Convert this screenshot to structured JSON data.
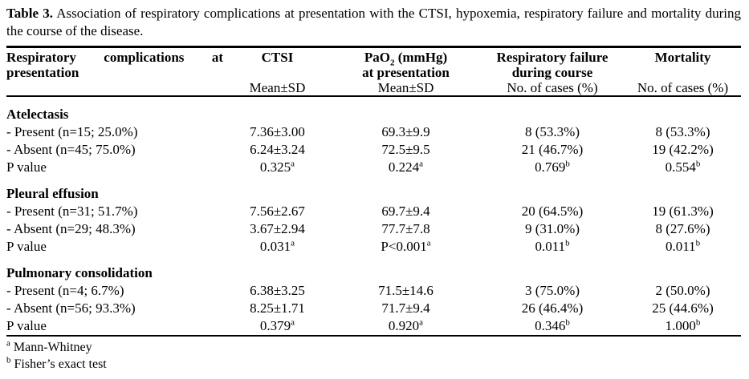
{
  "caption": {
    "label": "Table 3.",
    "text": "Association of respiratory complications at presentation with the CTSI, hypoxemia, respiratory failure and mortality during the course of the disease."
  },
  "header": {
    "col1_line1": "Respiratory complications at",
    "col1_line2": "presentation",
    "col2": {
      "title": "CTSI",
      "sub": "Mean±SD"
    },
    "col3": {
      "title_main": "PaO",
      "title_subscript": "2",
      "title_rest": " (mmHg)",
      "line2": "at presentation",
      "sub": "Mean±SD"
    },
    "col4": {
      "title": "Respiratory failure",
      "line2": "during course",
      "sub": "No. of cases (%)"
    },
    "col5": {
      "title": "Mortality",
      "sub": "No. of cases (%)"
    }
  },
  "sections": [
    {
      "title": "Atelectasis",
      "rows": [
        {
          "label": "- Present (n=15; 25.0%)",
          "cells": [
            "7.36±3.00",
            "69.3±9.9",
            "8 (53.3%)",
            "8 (53.3%)"
          ]
        },
        {
          "label": "- Absent (n=45; 75.0%)",
          "cells": [
            "6.24±3.24",
            "72.5±9.5",
            "21 (46.7%)",
            "19 (42.2%)"
          ]
        },
        {
          "label": "P value",
          "cells": [
            "0.325",
            "0.224",
            "0.769",
            "0.554"
          ],
          "sups": [
            "a",
            "a",
            "b",
            "b"
          ]
        }
      ]
    },
    {
      "title": "Pleural effusion",
      "rows": [
        {
          "label": "- Present (n=31; 51.7%)",
          "cells": [
            "7.56±2.67",
            "69.7±9.4",
            "20 (64.5%)",
            "19 (61.3%)"
          ]
        },
        {
          "label": "- Absent (n=29; 48.3%)",
          "cells": [
            "3.67±2.94",
            "77.7±7.8",
            "9 (31.0%)",
            "8 (27.6%)"
          ]
        },
        {
          "label": "P value",
          "cells": [
            "0.031",
            "P<0.001",
            "0.011",
            "0.011"
          ],
          "sups": [
            "a",
            "a",
            "b",
            "b"
          ]
        }
      ]
    },
    {
      "title": "Pulmonary consolidation",
      "rows": [
        {
          "label": "- Present (n=4; 6.7%)",
          "cells": [
            "6.38±3.25",
            "71.5±14.6",
            "3 (75.0%)",
            "2 (50.0%)"
          ]
        },
        {
          "label": "- Absent (n=56; 93.3%)",
          "cells": [
            "8.25±1.71",
            "71.7±9.4",
            "26 (46.4%)",
            "25 (44.6%)"
          ]
        },
        {
          "label": "P value",
          "cells": [
            "0.379",
            "0.920",
            "0.346",
            "1.000"
          ],
          "sups": [
            "a",
            "a",
            "b",
            "b"
          ]
        }
      ]
    }
  ],
  "footnotes": [
    {
      "marker": "a",
      "text": "Mann-Whitney"
    },
    {
      "marker": "b",
      "text": "Fisher’s exact test"
    }
  ]
}
